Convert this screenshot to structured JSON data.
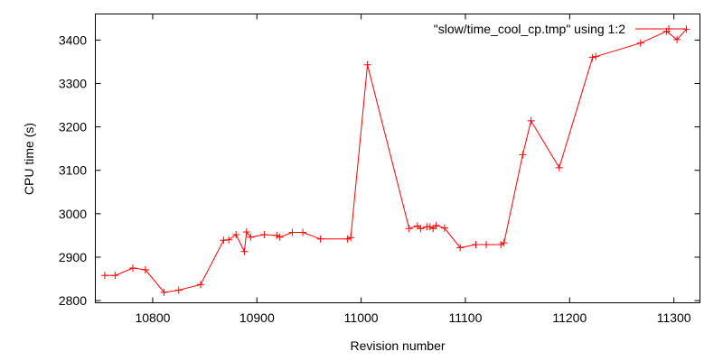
{
  "chart_data": {
    "type": "line",
    "xlabel": "Revision number",
    "ylabel": "CPU time (s)",
    "xlim": [
      10745,
      11325
    ],
    "ylim": [
      2795,
      3460
    ],
    "xticks": [
      10800,
      10900,
      11000,
      11100,
      11200,
      11300
    ],
    "yticks": [
      2800,
      2900,
      3000,
      3100,
      3200,
      3300,
      3400
    ],
    "grid": false,
    "legend_position": "top-right",
    "series": [
      {
        "name": "\"slow/time_cool_cp.tmp\" using 1:2",
        "color": "#ff0000",
        "marker": "plus",
        "x": [
          10754,
          10764,
          10781,
          10793,
          10811,
          10825,
          10846,
          10868,
          10873,
          10880,
          10888,
          10890,
          10894,
          10907,
          10919,
          10922,
          10934,
          10944,
          10961,
          10987,
          10990,
          11006,
          11046,
          11054,
          11057,
          11063,
          11066,
          11069,
          11072,
          11080,
          11095,
          11110,
          11120,
          11134,
          11137,
          11155,
          11163,
          11190,
          11222,
          11225,
          11268,
          11293,
          11303,
          11312
        ],
        "y": [
          2858,
          2858,
          2875,
          2871,
          2819,
          2824,
          2837,
          2939,
          2940,
          2952,
          2913,
          2958,
          2946,
          2952,
          2950,
          2946,
          2957,
          2957,
          2942,
          2942,
          2945,
          3343,
          2966,
          2972,
          2966,
          2970,
          2970,
          2966,
          2973,
          2967,
          2922,
          2929,
          2929,
          2929,
          2933,
          3136,
          3214,
          3106,
          3360,
          3362,
          3393,
          3420,
          3401,
          3425
        ]
      }
    ]
  }
}
